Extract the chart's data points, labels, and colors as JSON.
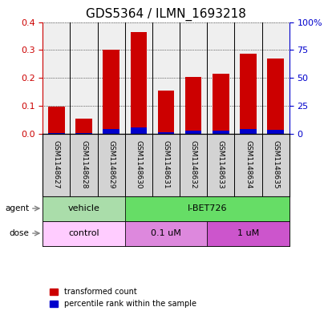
{
  "title": "GDS5364 / ILMN_1693218",
  "samples": [
    "GSM1148627",
    "GSM1148628",
    "GSM1148629",
    "GSM1148630",
    "GSM1148631",
    "GSM1148632",
    "GSM1148633",
    "GSM1148634",
    "GSM1148635"
  ],
  "transformed_count": [
    0.098,
    0.054,
    0.302,
    0.365,
    0.155,
    0.203,
    0.215,
    0.288,
    0.27
  ],
  "percentile_rank": [
    0.01,
    0.01,
    0.04,
    0.055,
    0.012,
    0.028,
    0.027,
    0.04,
    0.038
  ],
  "ylim_left": [
    0,
    0.4
  ],
  "ylim_right": [
    0,
    100
  ],
  "yticks_left": [
    0,
    0.1,
    0.2,
    0.3,
    0.4
  ],
  "yticks_right": [
    0,
    25,
    50,
    75,
    100
  ],
  "ytick_labels_right": [
    "0",
    "25",
    "50",
    "75",
    "100%"
  ],
  "bar_width": 0.6,
  "red_color": "#cc0000",
  "blue_color": "#0000cc",
  "agent_labels": [
    {
      "text": "vehicle",
      "span": [
        0,
        3
      ],
      "color": "#90ee90"
    },
    {
      "text": "I-BET726",
      "span": [
        3,
        9
      ],
      "color": "#44ee44"
    }
  ],
  "dose_labels": [
    {
      "text": "control",
      "span": [
        0,
        3
      ],
      "color": "#ffb3ff"
    },
    {
      "text": "0.1 uM",
      "span": [
        3,
        6
      ],
      "color": "#ee88ee"
    },
    {
      "text": "1 uM",
      "span": [
        6,
        9
      ],
      "color": "#cc66cc"
    }
  ],
  "bg_color": "#d3d3d3",
  "grid_color": "#000000",
  "left_tick_color": "#cc0000",
  "right_tick_color": "#0000cc"
}
